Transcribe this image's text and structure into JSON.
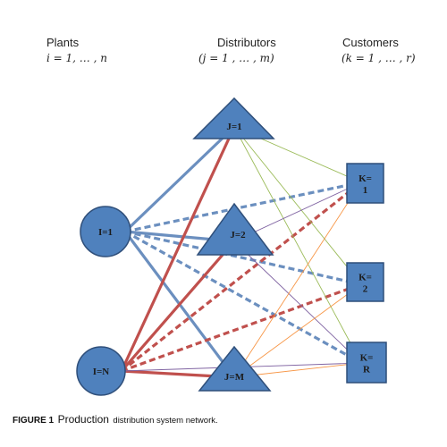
{
  "headers": {
    "plants": {
      "title": "Plants",
      "index": "i = 1, … , n"
    },
    "distributors": {
      "title": "Distributors",
      "index": "(j = 1 , … , m)"
    },
    "customers": {
      "title": "Customers",
      "index": "(k = 1 , … , r)"
    }
  },
  "nodes": {
    "plant_1": "I=1",
    "plant_n": "I=N",
    "dist_1": "J=1",
    "dist_2": "J=2",
    "dist_m": "J=M",
    "cust_1": "K=\n1",
    "cust_2": "K=\n2",
    "cust_r": "K=\nR"
  },
  "colors": {
    "node_fill": "#4f81bd",
    "node_stroke": "#2f4f7a",
    "blue_link": "#6b8fbf",
    "red_link": "#c0504d",
    "green_link": "#9bbb59",
    "orange_link": "#f79646",
    "purple_link": "#8064a2"
  },
  "edges": [
    {
      "from": "plant_1",
      "to": "dist_1",
      "color": "blue_link",
      "style": "solid-thick"
    },
    {
      "from": "plant_1",
      "to": "dist_2",
      "color": "blue_link",
      "style": "solid-thick"
    },
    {
      "from": "plant_1",
      "to": "dist_m",
      "color": "blue_link",
      "style": "solid-thick"
    },
    {
      "from": "plant_1",
      "to": "cust_1",
      "color": "blue_link",
      "style": "dashed-thick"
    },
    {
      "from": "plant_1",
      "to": "cust_2",
      "color": "blue_link",
      "style": "dashed-thick"
    },
    {
      "from": "plant_1",
      "to": "cust_r",
      "color": "blue_link",
      "style": "dashed-thick"
    },
    {
      "from": "plant_n",
      "to": "dist_1",
      "color": "red_link",
      "style": "solid-thick"
    },
    {
      "from": "plant_n",
      "to": "dist_2",
      "color": "red_link",
      "style": "solid-thick"
    },
    {
      "from": "plant_n",
      "to": "dist_m",
      "color": "red_link",
      "style": "solid-thick"
    },
    {
      "from": "plant_n",
      "to": "cust_1",
      "color": "red_link",
      "style": "dashed-thick"
    },
    {
      "from": "plant_n",
      "to": "cust_2",
      "color": "red_link",
      "style": "dashed-thick"
    },
    {
      "from": "plant_n",
      "to": "cust_r",
      "color": "purple_link",
      "style": "solid-thin"
    },
    {
      "from": "dist_1",
      "to": "cust_1",
      "color": "green_link",
      "style": "solid-thin"
    },
    {
      "from": "dist_1",
      "to": "cust_2",
      "color": "green_link",
      "style": "solid-thin"
    },
    {
      "from": "dist_1",
      "to": "cust_r",
      "color": "green_link",
      "style": "solid-thin"
    },
    {
      "from": "dist_2",
      "to": "cust_1",
      "color": "purple_link",
      "style": "solid-thin"
    },
    {
      "from": "dist_2",
      "to": "cust_r",
      "color": "purple_link",
      "style": "solid-thin"
    },
    {
      "from": "dist_m",
      "to": "cust_1",
      "color": "orange_link",
      "style": "solid-thin"
    },
    {
      "from": "dist_m",
      "to": "cust_2",
      "color": "orange_link",
      "style": "solid-thin"
    },
    {
      "from": "dist_m",
      "to": "cust_r",
      "color": "orange_link",
      "style": "solid-thin"
    }
  ],
  "caption": {
    "figure": "FIGURE 1",
    "first_word": "Production",
    "rest": "distribution system network."
  }
}
